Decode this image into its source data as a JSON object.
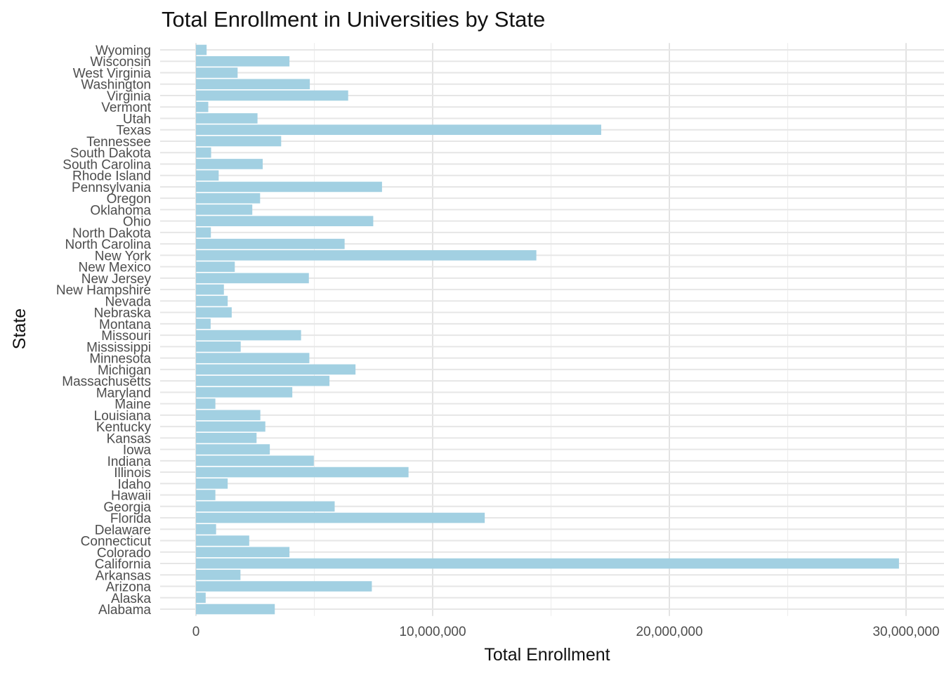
{
  "chart_data": {
    "type": "bar",
    "orientation": "horizontal",
    "title": "Total Enrollment in Universities by State",
    "xlabel": "Total Enrollment",
    "ylabel": "State",
    "xlim": [
      -1500000,
      31000000
    ],
    "x_ticks": [
      0,
      10000000,
      20000000,
      30000000
    ],
    "x_tick_labels": [
      "0",
      "10,000,000",
      "20,000,000",
      "30,000,000"
    ],
    "x_minor_ticks": [
      5000000,
      15000000,
      25000000
    ],
    "grid": true,
    "bar_color": "#a2d0e2",
    "categories": [
      "Alabama",
      "Alaska",
      "Arizona",
      "Arkansas",
      "California",
      "Colorado",
      "Connecticut",
      "Delaware",
      "Florida",
      "Georgia",
      "Hawaii",
      "Idaho",
      "Illinois",
      "Indiana",
      "Iowa",
      "Kansas",
      "Kentucky",
      "Louisiana",
      "Maine",
      "Maryland",
      "Massachusetts",
      "Michigan",
      "Minnesota",
      "Mississippi",
      "Missouri",
      "Montana",
      "Nebraska",
      "Nevada",
      "New Hampshire",
      "New Jersey",
      "New Mexico",
      "New York",
      "North Carolina",
      "North Dakota",
      "Ohio",
      "Oklahoma",
      "Oregon",
      "Pennsylvania",
      "Rhode Island",
      "South Carolina",
      "South Dakota",
      "Tennessee",
      "Texas",
      "Utah",
      "Vermont",
      "Virginia",
      "Washington",
      "West Virginia",
      "Wisconsin",
      "Wyoming"
    ],
    "values": [
      3330000,
      410000,
      7430000,
      1880000,
      29700000,
      3950000,
      2250000,
      850000,
      12200000,
      5860000,
      820000,
      1340000,
      8980000,
      4980000,
      3120000,
      2560000,
      2930000,
      2720000,
      820000,
      4070000,
      5640000,
      6740000,
      4790000,
      1890000,
      4440000,
      620000,
      1510000,
      1340000,
      1180000,
      4770000,
      1640000,
      14380000,
      6280000,
      630000,
      7490000,
      2380000,
      2710000,
      7860000,
      960000,
      2820000,
      640000,
      3600000,
      17120000,
      2600000,
      520000,
      6430000,
      4810000,
      1760000,
      3950000,
      450000
    ]
  }
}
